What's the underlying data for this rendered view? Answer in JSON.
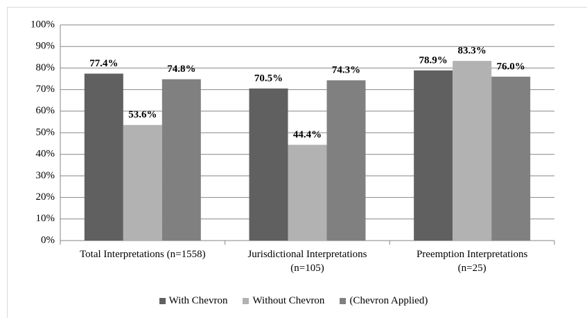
{
  "chart_data": {
    "type": "bar",
    "categories": [
      "Total Interpretations (n=1558)",
      "Jurisdictional Interpretations\n(n=105)",
      "Preemption Interpretations\n(n=25)"
    ],
    "series": [
      {
        "name": "With Chevron",
        "color": "#606060",
        "values": [
          77.4,
          70.5,
          78.9
        ],
        "value_labels": [
          "77.4%",
          "70.5%",
          "78.9%"
        ]
      },
      {
        "name": "Without Chevron",
        "color": "#b2b2b2",
        "values": [
          53.6,
          44.4,
          83.3
        ],
        "value_labels": [
          "53.6%",
          "44.4%",
          "83.3%"
        ]
      },
      {
        "name": "(Chevron Applied)",
        "color": "#808080",
        "values": [
          74.8,
          74.3,
          76.0
        ],
        "value_labels": [
          "74.8%",
          "74.3%",
          "76.0%"
        ]
      }
    ],
    "ylim": [
      0,
      100
    ],
    "yticks": [
      {
        "value": 0,
        "label": "0%"
      },
      {
        "value": 10,
        "label": "10%"
      },
      {
        "value": 20,
        "label": "20%"
      },
      {
        "value": 30,
        "label": "30%"
      },
      {
        "value": 40,
        "label": "40%"
      },
      {
        "value": 50,
        "label": "50%"
      },
      {
        "value": 60,
        "label": "60%"
      },
      {
        "value": 70,
        "label": "70%"
      },
      {
        "value": 80,
        "label": "80%"
      },
      {
        "value": 90,
        "label": "90%"
      },
      {
        "value": 100,
        "label": "100%"
      }
    ],
    "grid": true,
    "legend": "bottom"
  }
}
